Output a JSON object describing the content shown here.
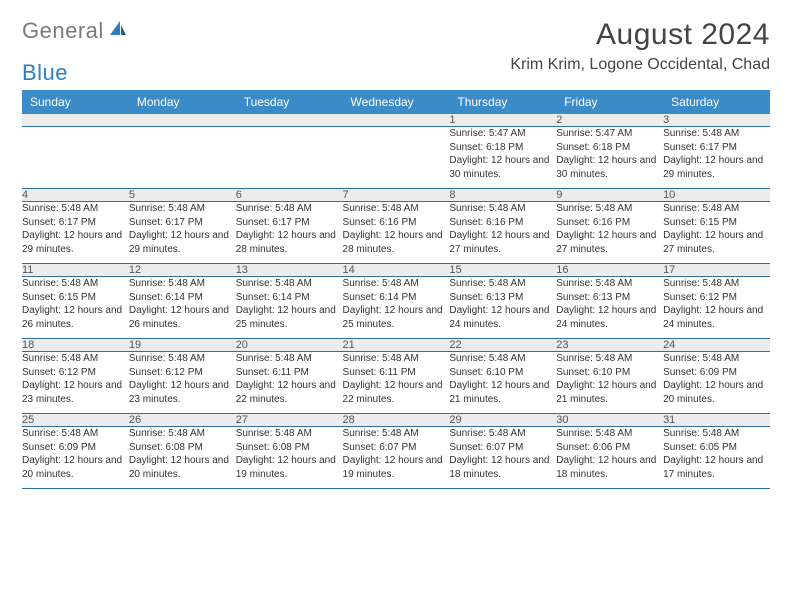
{
  "logo": {
    "word1": "General",
    "word2": "Blue"
  },
  "header": {
    "month_title": "August 2024",
    "location": "Krim Krim, Logone Occidental, Chad"
  },
  "colors": {
    "header_bg": "#3b8bc8",
    "header_text": "#ffffff",
    "daynum_bg": "#ececec",
    "row_divider": "#2f6fa8",
    "logo_gray": "#7a7a7a",
    "logo_blue": "#2f7fbf",
    "text": "#333333",
    "background": "#ffffff"
  },
  "typography": {
    "month_title_fontsize": 30,
    "location_fontsize": 16,
    "weekday_fontsize": 12,
    "daynum_fontsize": 11,
    "detail_fontsize": 10,
    "font_family": "Arial"
  },
  "weekdays": [
    "Sunday",
    "Monday",
    "Tuesday",
    "Wednesday",
    "Thursday",
    "Friday",
    "Saturday"
  ],
  "layout": {
    "columns": 7,
    "rows": 5,
    "first_day_column_index": 4
  },
  "days": [
    {
      "n": 1,
      "sunrise": "5:47 AM",
      "sunset": "6:18 PM",
      "daylight": "12 hours and 30 minutes."
    },
    {
      "n": 2,
      "sunrise": "5:47 AM",
      "sunset": "6:18 PM",
      "daylight": "12 hours and 30 minutes."
    },
    {
      "n": 3,
      "sunrise": "5:48 AM",
      "sunset": "6:17 PM",
      "daylight": "12 hours and 29 minutes."
    },
    {
      "n": 4,
      "sunrise": "5:48 AM",
      "sunset": "6:17 PM",
      "daylight": "12 hours and 29 minutes."
    },
    {
      "n": 5,
      "sunrise": "5:48 AM",
      "sunset": "6:17 PM",
      "daylight": "12 hours and 29 minutes."
    },
    {
      "n": 6,
      "sunrise": "5:48 AM",
      "sunset": "6:17 PM",
      "daylight": "12 hours and 28 minutes."
    },
    {
      "n": 7,
      "sunrise": "5:48 AM",
      "sunset": "6:16 PM",
      "daylight": "12 hours and 28 minutes."
    },
    {
      "n": 8,
      "sunrise": "5:48 AM",
      "sunset": "6:16 PM",
      "daylight": "12 hours and 27 minutes."
    },
    {
      "n": 9,
      "sunrise": "5:48 AM",
      "sunset": "6:16 PM",
      "daylight": "12 hours and 27 minutes."
    },
    {
      "n": 10,
      "sunrise": "5:48 AM",
      "sunset": "6:15 PM",
      "daylight": "12 hours and 27 minutes."
    },
    {
      "n": 11,
      "sunrise": "5:48 AM",
      "sunset": "6:15 PM",
      "daylight": "12 hours and 26 minutes."
    },
    {
      "n": 12,
      "sunrise": "5:48 AM",
      "sunset": "6:14 PM",
      "daylight": "12 hours and 26 minutes."
    },
    {
      "n": 13,
      "sunrise": "5:48 AM",
      "sunset": "6:14 PM",
      "daylight": "12 hours and 25 minutes."
    },
    {
      "n": 14,
      "sunrise": "5:48 AM",
      "sunset": "6:14 PM",
      "daylight": "12 hours and 25 minutes."
    },
    {
      "n": 15,
      "sunrise": "5:48 AM",
      "sunset": "6:13 PM",
      "daylight": "12 hours and 24 minutes."
    },
    {
      "n": 16,
      "sunrise": "5:48 AM",
      "sunset": "6:13 PM",
      "daylight": "12 hours and 24 minutes."
    },
    {
      "n": 17,
      "sunrise": "5:48 AM",
      "sunset": "6:12 PM",
      "daylight": "12 hours and 24 minutes."
    },
    {
      "n": 18,
      "sunrise": "5:48 AM",
      "sunset": "6:12 PM",
      "daylight": "12 hours and 23 minutes."
    },
    {
      "n": 19,
      "sunrise": "5:48 AM",
      "sunset": "6:12 PM",
      "daylight": "12 hours and 23 minutes."
    },
    {
      "n": 20,
      "sunrise": "5:48 AM",
      "sunset": "6:11 PM",
      "daylight": "12 hours and 22 minutes."
    },
    {
      "n": 21,
      "sunrise": "5:48 AM",
      "sunset": "6:11 PM",
      "daylight": "12 hours and 22 minutes."
    },
    {
      "n": 22,
      "sunrise": "5:48 AM",
      "sunset": "6:10 PM",
      "daylight": "12 hours and 21 minutes."
    },
    {
      "n": 23,
      "sunrise": "5:48 AM",
      "sunset": "6:10 PM",
      "daylight": "12 hours and 21 minutes."
    },
    {
      "n": 24,
      "sunrise": "5:48 AM",
      "sunset": "6:09 PM",
      "daylight": "12 hours and 20 minutes."
    },
    {
      "n": 25,
      "sunrise": "5:48 AM",
      "sunset": "6:09 PM",
      "daylight": "12 hours and 20 minutes."
    },
    {
      "n": 26,
      "sunrise": "5:48 AM",
      "sunset": "6:08 PM",
      "daylight": "12 hours and 20 minutes."
    },
    {
      "n": 27,
      "sunrise": "5:48 AM",
      "sunset": "6:08 PM",
      "daylight": "12 hours and 19 minutes."
    },
    {
      "n": 28,
      "sunrise": "5:48 AM",
      "sunset": "6:07 PM",
      "daylight": "12 hours and 19 minutes."
    },
    {
      "n": 29,
      "sunrise": "5:48 AM",
      "sunset": "6:07 PM",
      "daylight": "12 hours and 18 minutes."
    },
    {
      "n": 30,
      "sunrise": "5:48 AM",
      "sunset": "6:06 PM",
      "daylight": "12 hours and 18 minutes."
    },
    {
      "n": 31,
      "sunrise": "5:48 AM",
      "sunset": "6:05 PM",
      "daylight": "12 hours and 17 minutes."
    }
  ],
  "labels": {
    "sunrise": "Sunrise: ",
    "sunset": "Sunset: ",
    "daylight": "Daylight: "
  }
}
